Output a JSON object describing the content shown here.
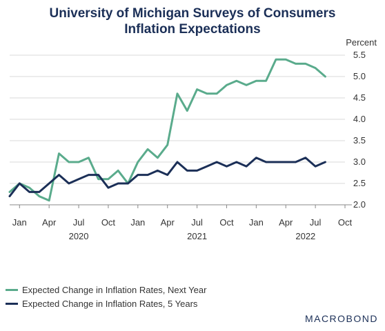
{
  "title": {
    "line1": "University of Michigan Surveys of Consumers",
    "line2": "Inflation Expectations"
  },
  "brand": "MACROBOND",
  "colors": {
    "next_year": "#5aab8c",
    "five_years": "#1b2f57",
    "grid": "#d9d9d9"
  },
  "chart_data": {
    "type": "line",
    "y_unit_label": "Percent",
    "ylim": [
      2.0,
      5.5
    ],
    "yticks": [
      "2.0",
      "2.5",
      "3.0",
      "3.5",
      "4.0",
      "4.5",
      "5.0",
      "5.5"
    ],
    "grid": "horizontal",
    "legend_placement": "bottom-left",
    "x_axis": {
      "start": "2020-01",
      "end": "2022-10",
      "month_ticks": [
        {
          "label": "Jan",
          "date": "2020-01"
        },
        {
          "label": "Apr",
          "date": "2020-04"
        },
        {
          "label": "Jul",
          "date": "2020-07"
        },
        {
          "label": "Oct",
          "date": "2020-10"
        },
        {
          "label": "Jan",
          "date": "2021-01"
        },
        {
          "label": "Apr",
          "date": "2021-04"
        },
        {
          "label": "Jul",
          "date": "2021-07"
        },
        {
          "label": "Oct",
          "date": "2021-10"
        },
        {
          "label": "Jan",
          "date": "2022-01"
        },
        {
          "label": "Apr",
          "date": "2022-04"
        },
        {
          "label": "Jul",
          "date": "2022-07"
        },
        {
          "label": "Oct",
          "date": "2022-10"
        }
      ],
      "year_labels": [
        {
          "label": "2020",
          "date": "2020-07"
        },
        {
          "label": "2021",
          "date": "2021-07"
        },
        {
          "label": "2022",
          "date": "2022-06"
        }
      ]
    },
    "x": [
      "2019-12",
      "2020-01",
      "2020-02",
      "2020-03",
      "2020-04",
      "2020-05",
      "2020-06",
      "2020-07",
      "2020-08",
      "2020-09",
      "2020-10",
      "2020-11",
      "2020-12",
      "2021-01",
      "2021-02",
      "2021-03",
      "2021-04",
      "2021-05",
      "2021-06",
      "2021-07",
      "2021-08",
      "2021-09",
      "2021-10",
      "2021-11",
      "2021-12",
      "2022-01",
      "2022-02",
      "2022-03",
      "2022-04",
      "2022-05",
      "2022-06",
      "2022-07",
      "2022-08"
    ],
    "series": [
      {
        "name": "Expected Change in Inflation Rates, Next Year",
        "key": "next_year",
        "values": [
          2.3,
          2.5,
          2.4,
          2.2,
          2.1,
          3.2,
          3.0,
          3.0,
          3.1,
          2.6,
          2.6,
          2.8,
          2.5,
          3.0,
          3.3,
          3.1,
          3.4,
          4.6,
          4.2,
          4.7,
          4.6,
          4.6,
          4.8,
          4.9,
          4.8,
          4.9,
          4.9,
          5.4,
          5.4,
          5.3,
          5.3,
          5.2,
          5.0
        ]
      },
      {
        "name": "Expected Change in Inflation Rates, 5 Years",
        "key": "five_years",
        "values": [
          2.2,
          2.5,
          2.3,
          2.3,
          2.5,
          2.7,
          2.5,
          2.6,
          2.7,
          2.7,
          2.4,
          2.5,
          2.5,
          2.7,
          2.7,
          2.8,
          2.7,
          3.0,
          2.8,
          2.8,
          2.9,
          3.0,
          2.9,
          3.0,
          2.9,
          3.1,
          3.0,
          3.0,
          3.0,
          3.0,
          3.1,
          2.9,
          3.0
        ]
      }
    ]
  }
}
